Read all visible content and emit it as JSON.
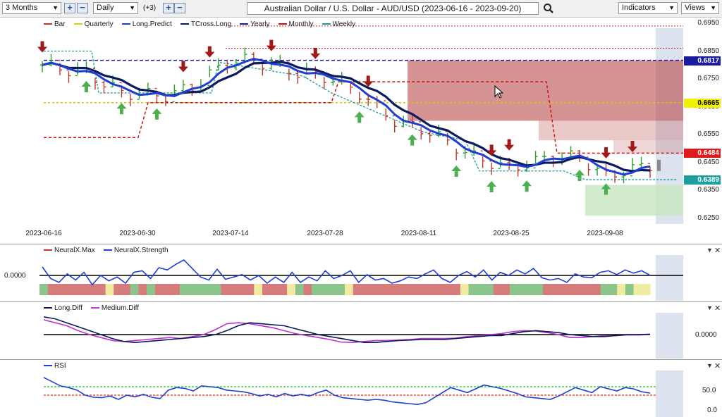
{
  "toolbar": {
    "period": "3 Months",
    "interval": "Daily",
    "extra": "(+3)",
    "title": "Australian Dollar / U.S. Dollar - AUD/USD (2023-06-16 - 2023-09-20)",
    "indicators_label": "Indicators",
    "views_label": "Views"
  },
  "price_pane": {
    "legend": [
      {
        "label": "Bar",
        "color": "#c0392b"
      },
      {
        "label": "Quarterly",
        "color": "#d4d400"
      },
      {
        "label": "Long.Predict",
        "color": "#1f3fd0"
      },
      {
        "label": "TCross.Long",
        "color": "#0a1a5c"
      },
      {
        "label": "Yearly",
        "color": "#1a1aa0"
      },
      {
        "label": "Monthly",
        "color": "#d01010"
      },
      {
        "label": "Weekly",
        "color": "#1a9a9a"
      }
    ],
    "y_ticks": [
      "0.6950",
      "0.6850",
      "0.6750",
      "0.6650",
      "0.6550",
      "0.6450",
      "0.6350",
      "0.6250"
    ],
    "tags": [
      {
        "label": "0.6817",
        "bg": "#1a1aa0",
        "fg": "#ffffff"
      },
      {
        "label": "0.6665",
        "bg": "#f2f200",
        "fg": "#000000"
      },
      {
        "label": "0.6484",
        "bg": "#e01a1a",
        "fg": "#ffffff"
      },
      {
        "label": "0.6389",
        "bg": "#1aa0a0",
        "fg": "#ffffff"
      }
    ],
    "x_labels": [
      "2023-06-16",
      "2023-06-30",
      "2023-07-14",
      "2023-07-28",
      "2023-08-11",
      "2023-08-25",
      "2023-09-08"
    ]
  },
  "neural_pane": {
    "legend": [
      {
        "label": "NeuralX.Max",
        "color": "#c0392b"
      },
      {
        "label": "NeuralX.Strength",
        "color": "#1f3fd0"
      }
    ],
    "y_label": "0.0000",
    "strength": [
      0.55,
      -0.2,
      -0.45,
      0.1,
      -0.3,
      0.2,
      -0.6,
      0.0,
      -0.35,
      -0.1,
      -0.5,
      0.2,
      0.3,
      -0.2,
      0.5,
      0.35,
      0.7,
      1.0,
      0.45,
      -0.1,
      -0.3,
      0.4,
      -0.25,
      -0.1,
      0.05,
      -0.3,
      0.0,
      -0.5,
      -0.1,
      -0.45,
      0.2,
      -0.45,
      -0.1,
      -0.35,
      0.3,
      -0.2,
      0.0,
      0.3,
      -0.45,
      0.05,
      -0.3,
      -0.2,
      -0.5,
      -0.35,
      -0.1,
      -0.2,
      0.1,
      0.35,
      -0.2,
      -0.45,
      0.0,
      0.25,
      -0.1,
      0.35,
      -0.3,
      0.2,
      0.0,
      0.35,
      0.1,
      0.45,
      -0.15,
      -0.3,
      -0.2,
      -0.45,
      0.1,
      -0.1,
      -0.15,
      0.2,
      0.3,
      0.05,
      0.35,
      0.15,
      0.3,
      0.0
    ],
    "bars": [
      "green",
      "red",
      "red",
      "red",
      "red",
      "red",
      "red",
      "red",
      "yellow",
      "red",
      "red",
      "green",
      "red",
      "green",
      "red",
      "red",
      "red",
      "green",
      "green",
      "green",
      "green",
      "green",
      "red",
      "red",
      "red",
      "red",
      "yellow",
      "red",
      "red",
      "red",
      "yellow",
      "green",
      "red",
      "green",
      "green",
      "green",
      "green",
      "yellow",
      "red",
      "red",
      "red",
      "red",
      "red",
      "red",
      "red",
      "red",
      "red",
      "red",
      "red",
      "red",
      "red",
      "yellow",
      "green",
      "green",
      "green",
      "red",
      "red",
      "green",
      "green",
      "green",
      "green",
      "red",
      "red",
      "red",
      "red",
      "red",
      "red",
      "red",
      "green",
      "green",
      "yellow",
      "green",
      "yellow",
      "yellow"
    ]
  },
  "diff_pane": {
    "legend": [
      {
        "label": "Long.Diff",
        "color": "#0a1a5c"
      },
      {
        "label": "Medium.Diff",
        "color": "#c030d0"
      }
    ],
    "y_label": "0.0000",
    "long_diff": [
      0.9,
      0.8,
      0.6,
      0.4,
      0.2,
      0.0,
      -0.2,
      -0.35,
      -0.4,
      -0.35,
      -0.3,
      -0.25,
      -0.2,
      -0.15,
      -0.1,
      0.0,
      0.2,
      0.45,
      0.6,
      0.55,
      0.5,
      0.45,
      0.3,
      0.15,
      0.0,
      -0.1,
      -0.2,
      -0.3,
      -0.4,
      -0.4,
      -0.35,
      -0.3,
      -0.28,
      -0.25,
      -0.25,
      -0.25,
      -0.2,
      -0.15,
      -0.1,
      -0.05,
      -0.05,
      0.05,
      0.15,
      0.2,
      0.15,
      0.1,
      0.0,
      -0.05,
      -0.1,
      -0.1,
      -0.05,
      0.0,
      0.0,
      0.02
    ],
    "medium_diff": [
      0.75,
      0.6,
      0.45,
      0.2,
      0.0,
      -0.15,
      -0.3,
      -0.35,
      -0.3,
      -0.25,
      -0.2,
      -0.15,
      -0.2,
      -0.1,
      0.0,
      0.25,
      0.55,
      0.6,
      0.55,
      0.45,
      0.35,
      0.2,
      0.05,
      -0.05,
      -0.15,
      -0.25,
      -0.38,
      -0.4,
      -0.35,
      -0.3,
      -0.3,
      -0.28,
      -0.25,
      -0.2,
      -0.2,
      -0.2,
      -0.18,
      -0.1,
      -0.05,
      0.0,
      0.05,
      0.15,
      0.2,
      0.18,
      0.1,
      0.0,
      -0.15,
      -0.15,
      -0.1,
      -0.05,
      -0.05,
      -0.02,
      -0.02,
      0.0
    ]
  },
  "rsi_pane": {
    "legend": [
      {
        "label": "RSI",
        "color": "#1f3fd0"
      }
    ],
    "y_ticks": [
      "50.0",
      "0.0"
    ],
    "rsi": [
      82,
      72,
      62,
      58,
      52,
      40,
      35,
      34,
      38,
      30,
      40,
      36,
      42,
      35,
      32,
      52,
      58,
      56,
      50,
      62,
      60,
      58,
      52,
      50,
      48,
      44,
      38,
      42,
      36,
      44,
      38,
      42,
      38,
      46,
      52,
      40,
      34,
      32,
      30,
      28,
      30,
      28,
      24,
      22,
      20,
      18,
      22,
      34,
      46,
      58,
      52,
      46,
      55,
      64,
      60,
      56,
      50,
      44,
      36,
      34,
      32,
      30,
      38,
      48,
      58,
      52,
      46,
      60,
      55,
      50,
      58,
      55,
      48,
      45
    ]
  },
  "colors": {
    "up": "#2aa02a",
    "down": "#c0392b",
    "signal_green": "#4caf50",
    "signal_red": "#a01a1a"
  }
}
